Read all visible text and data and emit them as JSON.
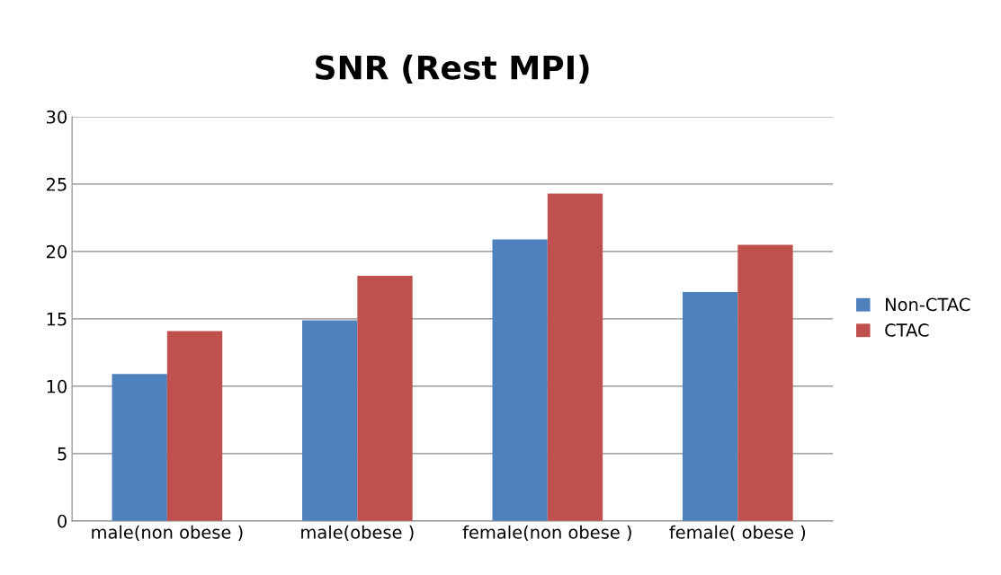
{
  "chart_data": {
    "type": "bar",
    "title": "SNR (Rest MPI)",
    "categories": [
      "male(non obese )",
      "male(obese )",
      "female(non obese )",
      "female( obese )"
    ],
    "series": [
      {
        "name": "Non-CTAC",
        "color": "#4f81bd",
        "values": [
          10.9,
          14.9,
          20.9,
          17.0
        ]
      },
      {
        "name": "CTAC",
        "color": "#c0504d",
        "values": [
          14.1,
          18.2,
          24.3,
          20.5
        ]
      }
    ],
    "ylim": [
      0,
      30
    ],
    "yticks": [
      0,
      5,
      10,
      15,
      20,
      25,
      30
    ],
    "grid": "y",
    "legend": "right"
  }
}
